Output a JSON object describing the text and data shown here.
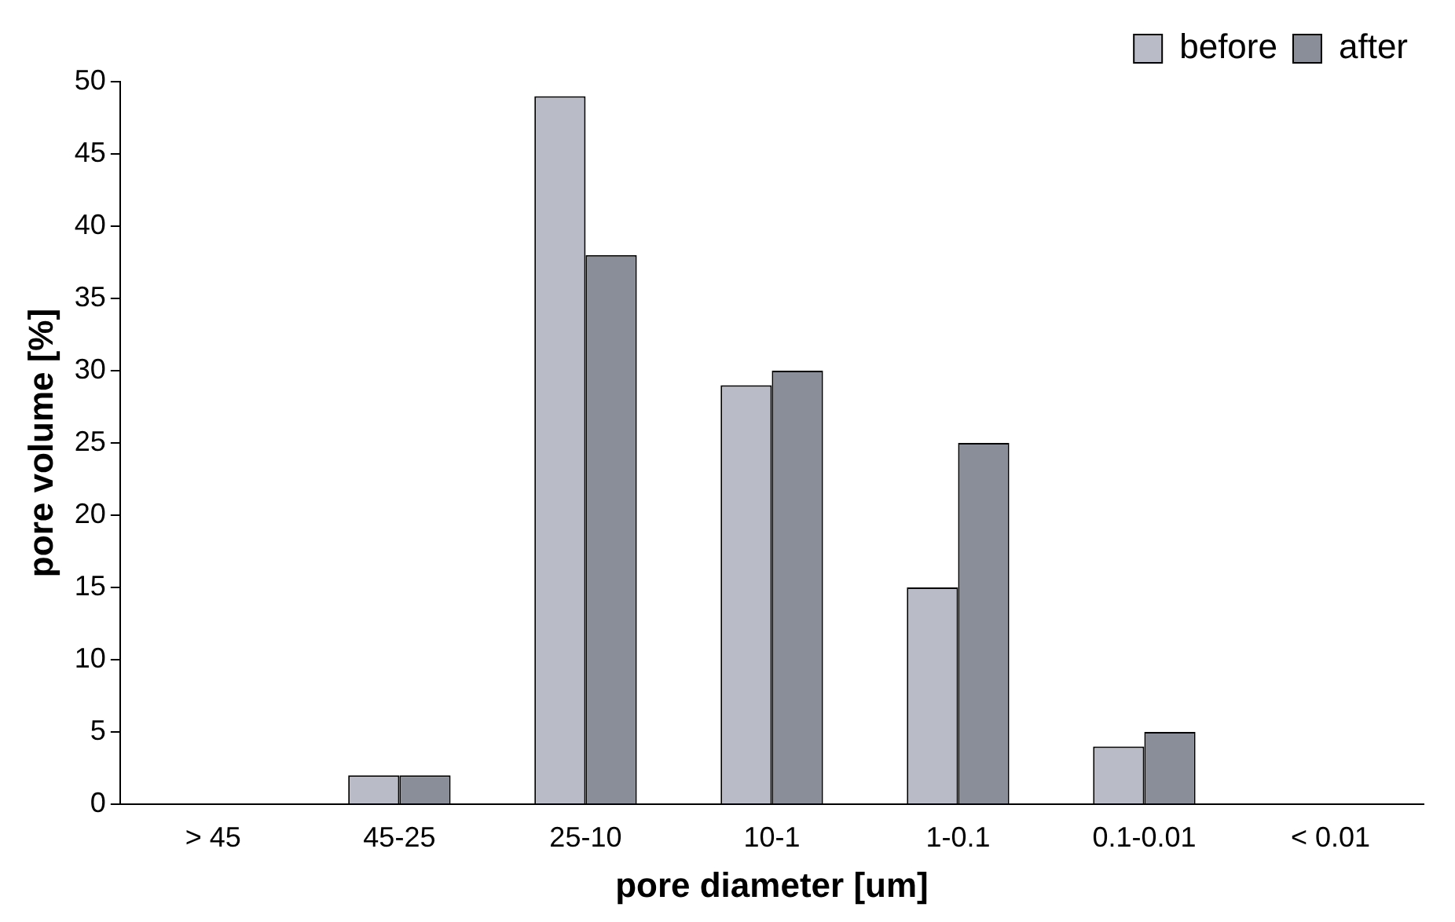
{
  "chart_data": {
    "type": "bar",
    "xlabel": "pore diameter [um]",
    "ylabel": "pore volume [%]",
    "categories": [
      "> 45",
      "45-25",
      "25-10",
      "10-1",
      "1-0.1",
      "0.1-0.01",
      "< 0.01"
    ],
    "series": [
      {
        "name": "before",
        "color": "#b9bcc6",
        "values": [
          0,
          2,
          49,
          29,
          15,
          4,
          0
        ]
      },
      {
        "name": "after",
        "color": "#8a8e98",
        "values": [
          0,
          2,
          38,
          30,
          25,
          5,
          0
        ]
      }
    ],
    "ylim": [
      0,
      50
    ],
    "yticks": [
      0,
      5,
      10,
      15,
      20,
      25,
      30,
      35,
      40,
      45,
      50
    ],
    "grid": false,
    "legend": "top right"
  }
}
